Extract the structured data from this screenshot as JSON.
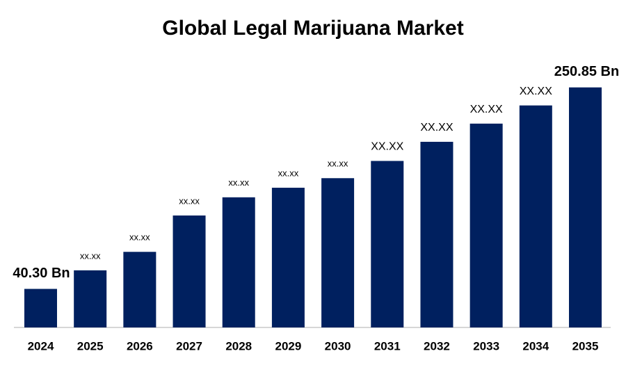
{
  "chart_data": {
    "type": "bar",
    "title": "Global Legal Marijuana Market",
    "categories": [
      "2024",
      "2025",
      "2026",
      "2027",
      "2028",
      "2029",
      "2030",
      "2031",
      "2032",
      "2033",
      "2034",
      "2035"
    ],
    "values": [
      40.3,
      59.7,
      79,
      117,
      136,
      146,
      156,
      174,
      194,
      213,
      232,
      250.85
    ],
    "value_labels": [
      "40.30 Bn",
      "xx.xx",
      "xx.xx",
      "xx.xx",
      "xx.xx",
      "xx.xx",
      "xx.xx",
      "XX.XX",
      "XX.XX",
      "XX.XX",
      "XX.XX",
      "250.85 Bn"
    ],
    "color": "#00205f",
    "ylim": [
      0,
      255
    ]
  }
}
